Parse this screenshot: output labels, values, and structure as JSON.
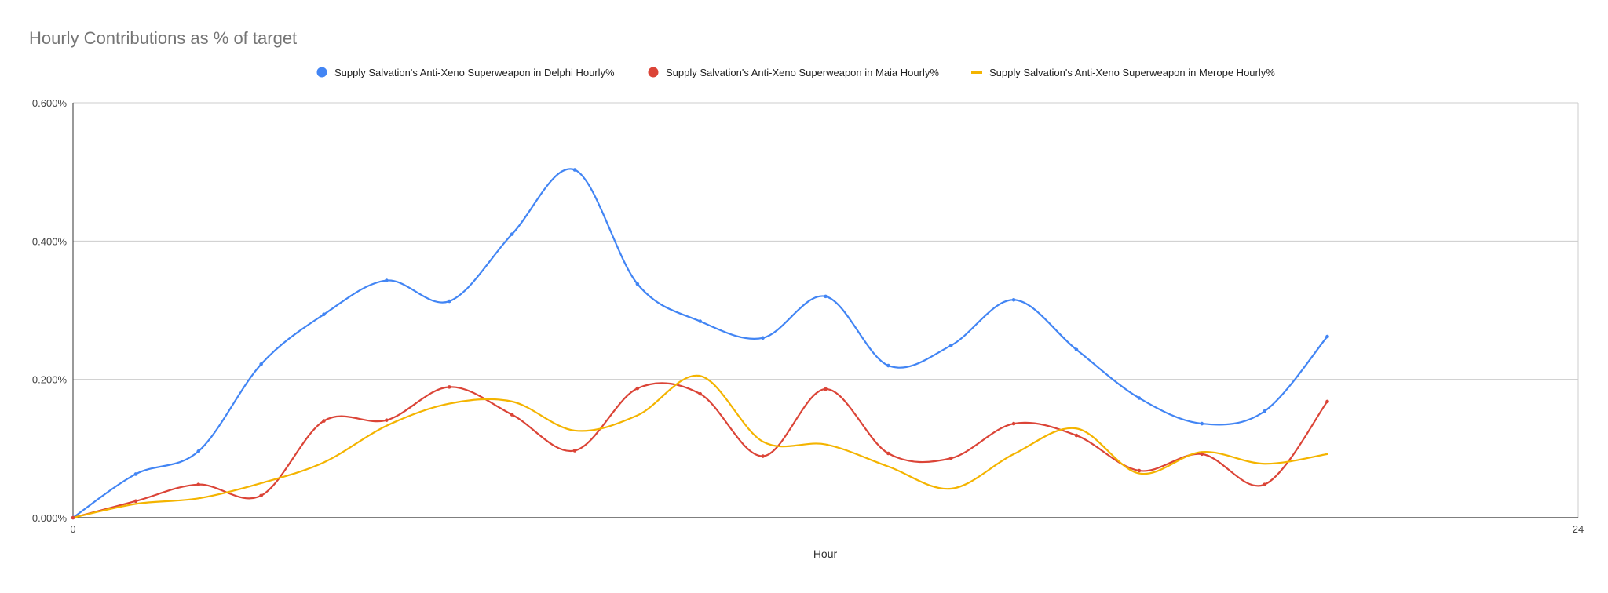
{
  "chart_data": {
    "type": "line",
    "title": "Hourly Contributions as % of target",
    "xlabel": "Hour",
    "ylabel": "",
    "xlim": [
      0,
      24
    ],
    "ylim": [
      0,
      0.6
    ],
    "x_ticks": [
      "0",
      "24"
    ],
    "y_ticks": [
      "0.000%",
      "0.200%",
      "0.400%",
      "0.600%"
    ],
    "y_tick_values": [
      0,
      0.2,
      0.4,
      0.6
    ],
    "grid": true,
    "legend_position": "top",
    "x": [
      0,
      1,
      2,
      3,
      4,
      5,
      6,
      7,
      8,
      9,
      10,
      11,
      12,
      13,
      14,
      15,
      16,
      17,
      18,
      19,
      20
    ],
    "series": [
      {
        "name": "Supply Salvation's Anti-Xeno Superweapon in Delphi Hourly%",
        "color": "#4285f4",
        "marker": "circle",
        "show_points": true,
        "values": [
          0,
          0.063,
          0.096,
          0.222,
          0.294,
          0.343,
          0.313,
          0.41,
          0.503,
          0.338,
          0.284,
          0.26,
          0.32,
          0.22,
          0.249,
          0.315,
          0.243,
          0.173,
          0.136,
          0.154,
          0.262
        ]
      },
      {
        "name": "Supply Salvation's Anti-Xeno Superweapon in Maia Hourly%",
        "color": "#db4437",
        "marker": "circle",
        "show_points": true,
        "values": [
          0,
          0.024,
          0.048,
          0.032,
          0.14,
          0.141,
          0.189,
          0.149,
          0.097,
          0.187,
          0.179,
          0.089,
          0.186,
          0.093,
          0.086,
          0.136,
          0.119,
          0.068,
          0.092,
          0.048,
          0.168
        ]
      },
      {
        "name": "Supply Salvation's Anti-Xeno Superweapon in Merope Hourly%",
        "color": "#f4b400",
        "marker": "line",
        "show_points": false,
        "values": [
          0,
          0.02,
          0.028,
          0.05,
          0.08,
          0.133,
          0.165,
          0.168,
          0.126,
          0.148,
          0.205,
          0.11,
          0.106,
          0.074,
          0.042,
          0.092,
          0.129,
          0.064,
          0.095,
          0.078,
          0.092
        ]
      }
    ]
  }
}
